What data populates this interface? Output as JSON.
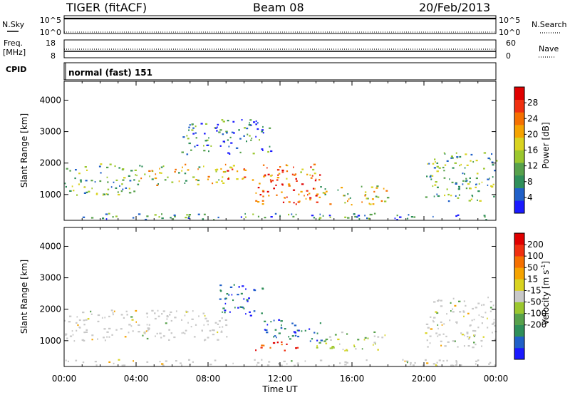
{
  "header": {
    "title": "TIGER (fitACF)",
    "beam": "Beam 08",
    "date": "20/Feb/2013"
  },
  "top_panels": {
    "nsky_label": "N.Sky",
    "nsearch_label": "N.Search",
    "noise_ticks_left": [
      "10^5",
      "10^0"
    ],
    "noise_ticks_right": [
      "10^5",
      "10^0"
    ],
    "freq_label_line1": "Freq.",
    "freq_label_line2": "[MHz]",
    "freq_ticks": [
      "18",
      "8"
    ],
    "nave_label": "Nave",
    "nave_ticks": [
      "60",
      "0"
    ],
    "cpid_label": "CPID",
    "cpid_text": "normal (fast) 151"
  },
  "chart_data": [
    {
      "type": "heatmap",
      "name": "Power",
      "ylabel": "Slant Range [km]",
      "xlabel": "Time UT",
      "x_ticks": [
        "00:00",
        "04:00",
        "08:00",
        "12:00",
        "16:00",
        "20:00",
        "00:00"
      ],
      "y_ticks": [
        1000,
        2000,
        3000,
        4000
      ],
      "ylim": [
        180,
        4600
      ],
      "xlim_hours": [
        0,
        24
      ],
      "colorbar": {
        "label": "Power [dB]",
        "ticks": [
          4,
          8,
          12,
          16,
          20,
          24,
          28
        ],
        "range": [
          0,
          32
        ],
        "colors": [
          "#1a1aff",
          "#2060c8",
          "#2f8f5a",
          "#57a14b",
          "#9bc72e",
          "#d9d320",
          "#f5a300",
          "#f57000",
          "#f03010",
          "#e00000"
        ]
      },
      "features": [
        {
          "t0": 0,
          "t1": 24,
          "r0": 220,
          "r1": 420,
          "level": "low"
        },
        {
          "t0": 0,
          "t1": 4,
          "r0": 1000,
          "r1": 2000,
          "level": "mid"
        },
        {
          "t0": 4,
          "t1": 9,
          "r0": 1300,
          "r1": 2000,
          "level": "mid-high"
        },
        {
          "t0": 9,
          "t1": 14,
          "r0": 1500,
          "r1": 2000,
          "level": "high"
        },
        {
          "t0": 10.3,
          "t1": 14.3,
          "r0": 700,
          "r1": 1700,
          "level": "max"
        },
        {
          "t0": 14,
          "t1": 18,
          "r0": 700,
          "r1": 1300,
          "level": "mid-high"
        },
        {
          "t0": 20,
          "t1": 24,
          "r0": 800,
          "r1": 2400,
          "level": "mid"
        },
        {
          "t0": 6.5,
          "t1": 11.5,
          "r0": 2300,
          "r1": 3400,
          "level": "low"
        }
      ]
    },
    {
      "type": "heatmap",
      "name": "Velocity",
      "ylabel": "Slant Range [km]",
      "xlabel": "Time UT",
      "x_ticks": [
        "00:00",
        "04:00",
        "08:00",
        "12:00",
        "16:00",
        "20:00",
        "00:00"
      ],
      "y_ticks": [
        1000,
        2000,
        3000,
        4000
      ],
      "ylim": [
        180,
        4600
      ],
      "xlim_hours": [
        0,
        24
      ],
      "colorbar": {
        "label": "Velocity [m s",
        "label_sup": "-1",
        "label_end": "]",
        "ticks": [
          200,
          100,
          50,
          15,
          -15,
          -50,
          -100,
          -200
        ],
        "colors": [
          "#1a1aff",
          "#2060c8",
          "#2f8f5a",
          "#57a14b",
          "#9bc72e",
          "#c8c8c8",
          "#d9d320",
          "#f5a300",
          "#f57000",
          "#f03010",
          "#e00000"
        ]
      },
      "features": [
        {
          "t0": 0,
          "t1": 24,
          "r0": 220,
          "r1": 420,
          "level": "ground"
        },
        {
          "t0": 0,
          "t1": 9,
          "r0": 1000,
          "r1": 2000,
          "level": "ground"
        },
        {
          "t0": 8.5,
          "t1": 11,
          "r0": 1800,
          "r1": 2800,
          "level": "toward"
        },
        {
          "t0": 11,
          "t1": 14.3,
          "r0": 1000,
          "r1": 1700,
          "level": "toward"
        },
        {
          "t0": 10.5,
          "t1": 13,
          "r0": 700,
          "r1": 1000,
          "level": "away"
        },
        {
          "t0": 14,
          "t1": 18,
          "r0": 700,
          "r1": 1300,
          "level": "slow"
        },
        {
          "t0": 20,
          "t1": 24,
          "r0": 800,
          "r1": 2400,
          "level": "ground"
        }
      ]
    }
  ]
}
